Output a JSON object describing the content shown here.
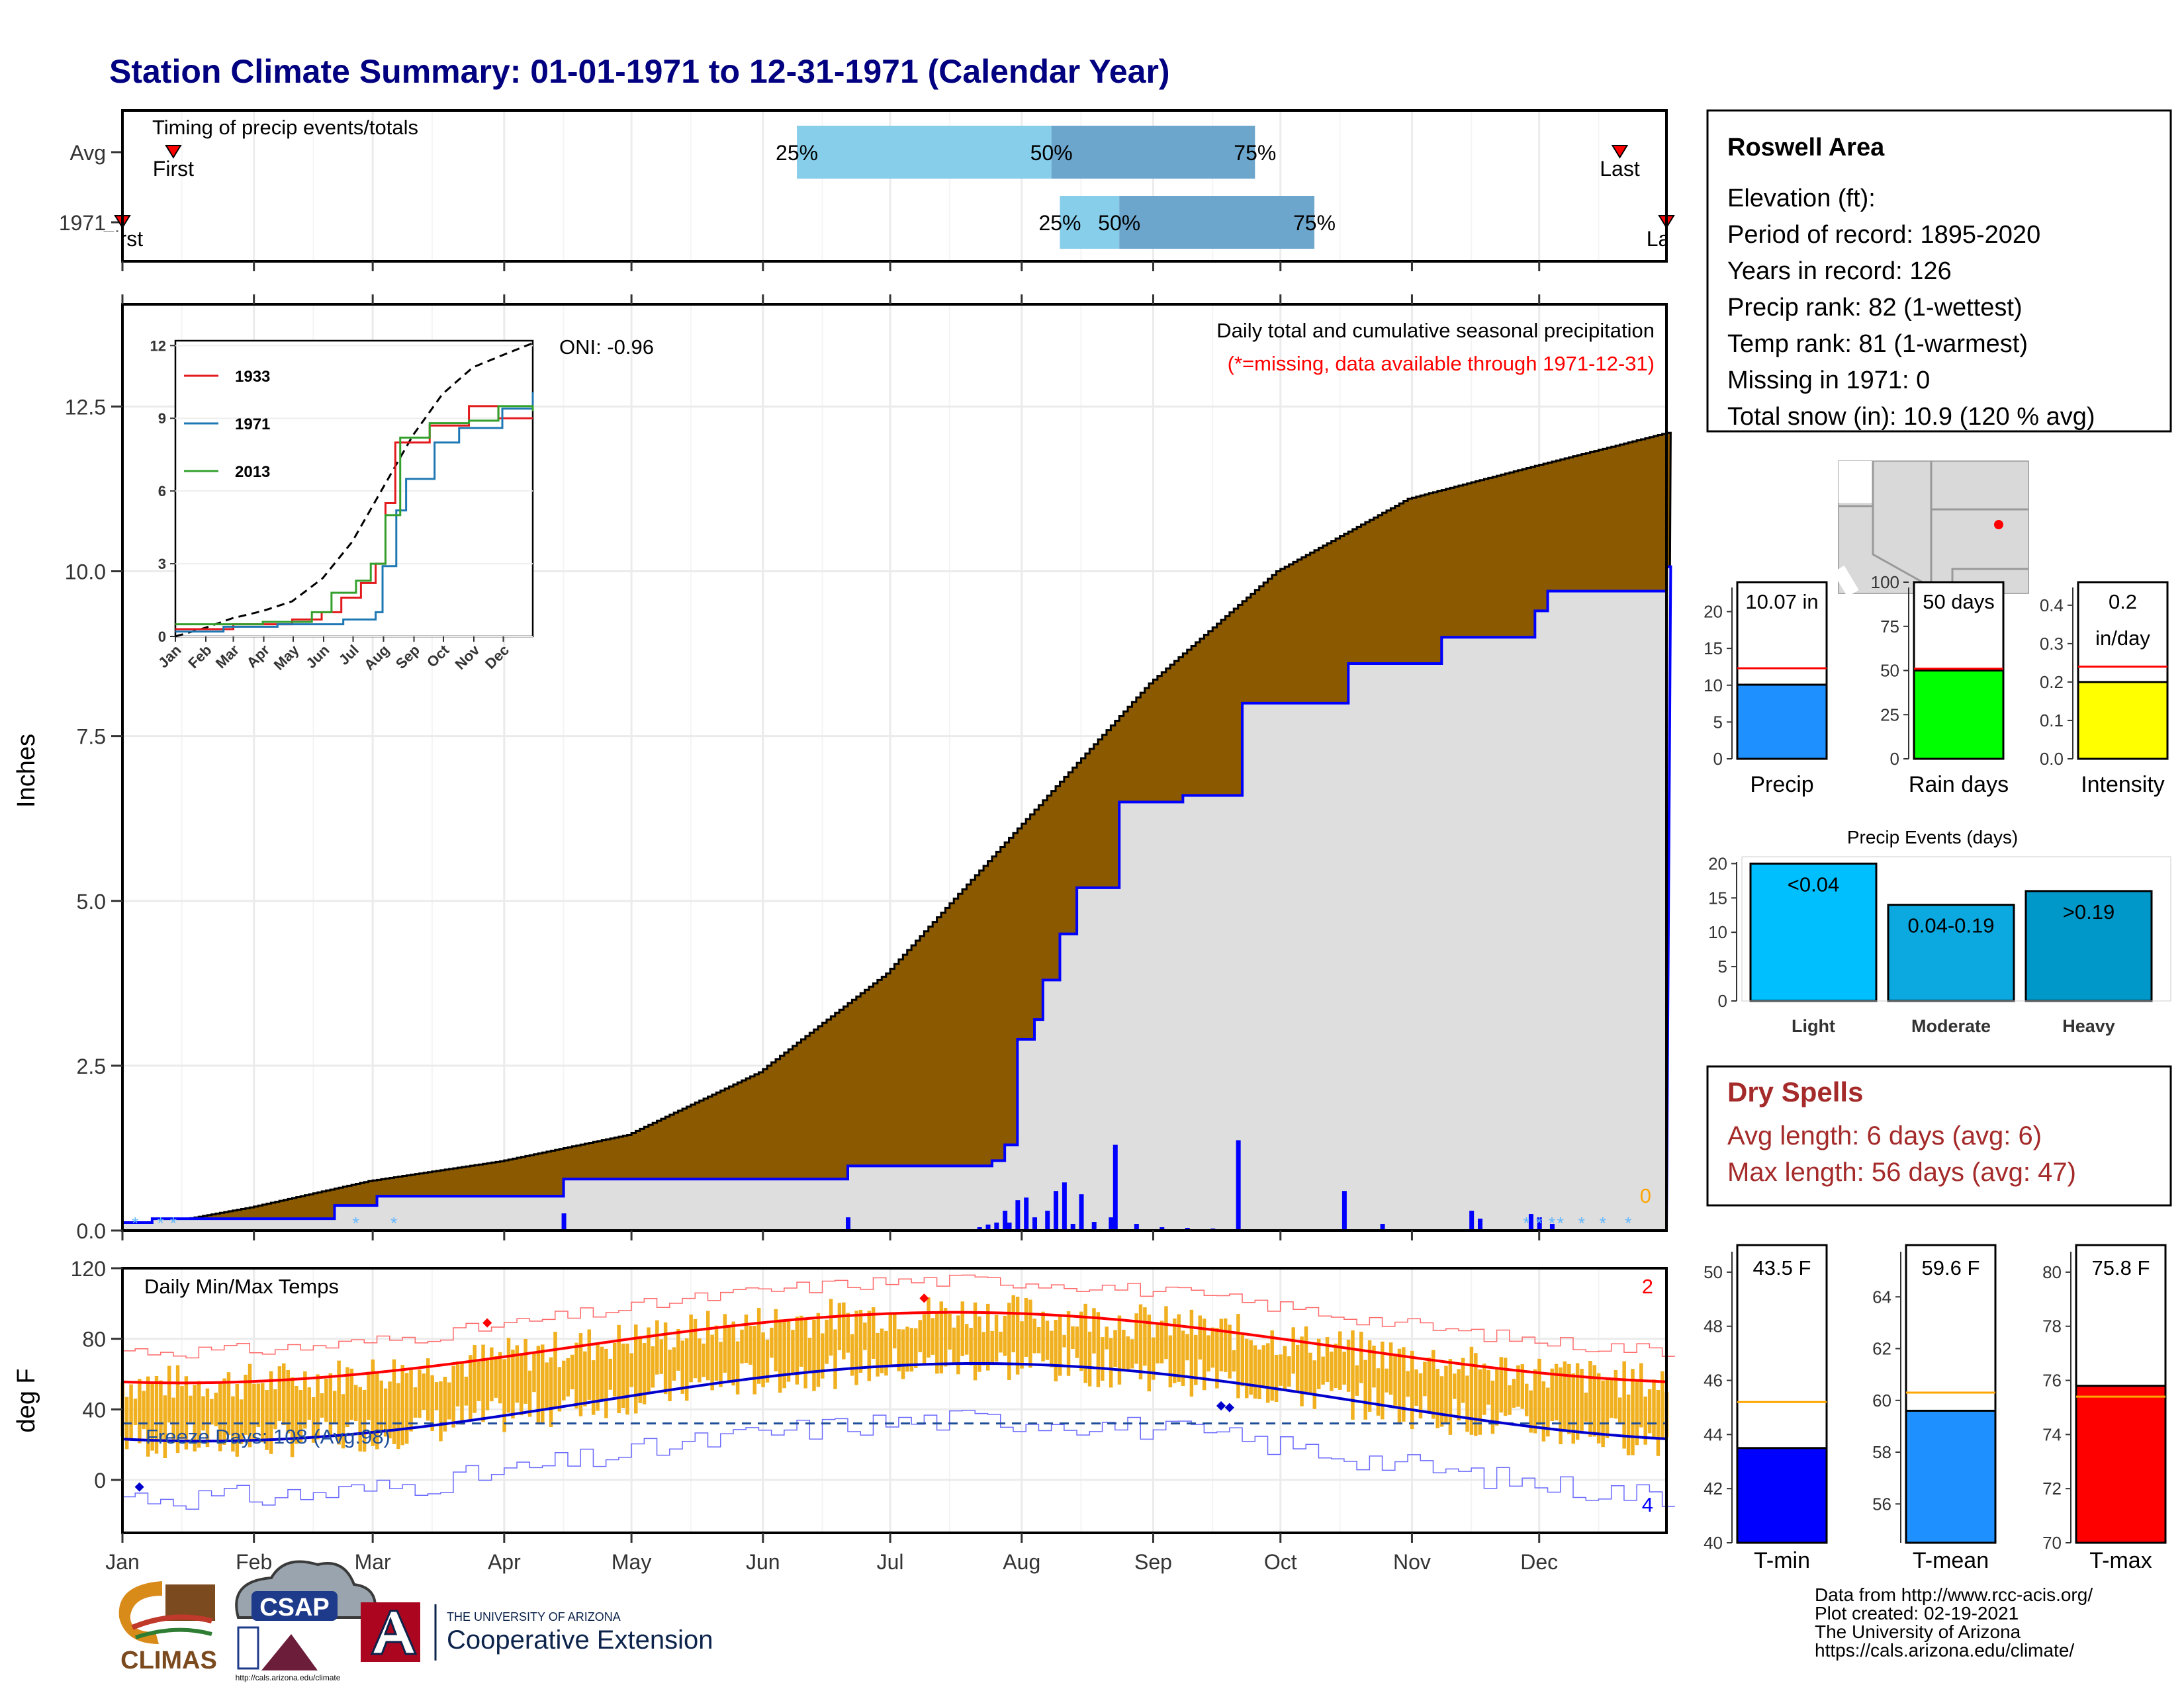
{
  "title": "Station Climate Summary: 01-01-1971 to 12-31-1971 (Calendar Year)",
  "months": [
    "Jan",
    "Feb",
    "Mar",
    "Apr",
    "May",
    "Jun",
    "Jul",
    "Aug",
    "Sep",
    "Oct",
    "Nov",
    "Dec"
  ],
  "timing": {
    "title": "Timing of precip events/totals",
    "rows": [
      {
        "label": "Avg",
        "first_day": 13,
        "last_day": 354,
        "first_label": "First",
        "last_label": "Last",
        "p25_day": 160,
        "p50_day": 220,
        "p75_day": 268
      },
      {
        "label": "1971",
        "first_day": 1,
        "last_day": 365,
        "first_label": "First",
        "last_label": "Last",
        "p25_day": 222,
        "p50_day": 236,
        "p75_day": 282
      }
    ],
    "pct_labels": [
      "25%",
      "50%",
      "75%"
    ]
  },
  "precip_panel": {
    "ylabel": "Inches",
    "ylim": [
      0,
      12.5
    ],
    "yticks": [
      "0.0",
      "2.5",
      "5.0",
      "7.5",
      "10.0",
      "12.5"
    ],
    "oni": "ONI: -0.96",
    "legend1": "Daily total and cumulative seasonal precipitation",
    "legend2": "(*=missing, data available through 1971-12-31)",
    "missing_count": "0",
    "avg_cumulative": [
      [
        1,
        0.0
      ],
      [
        31,
        0.35
      ],
      [
        59,
        0.75
      ],
      [
        90,
        1.05
      ],
      [
        120,
        1.45
      ],
      [
        151,
        2.4
      ],
      [
        181,
        3.9
      ],
      [
        212,
        6.1
      ],
      [
        243,
        8.3
      ],
      [
        273,
        10.0
      ],
      [
        304,
        11.1
      ],
      [
        334,
        11.6
      ],
      [
        365,
        12.1
      ]
    ],
    "cum_1971": [
      [
        1,
        0.12
      ],
      [
        8,
        0.18
      ],
      [
        50,
        0.18
      ],
      [
        51,
        0.38
      ],
      [
        60,
        0.38
      ],
      [
        61,
        0.52
      ],
      [
        104,
        0.52
      ],
      [
        105,
        0.78
      ],
      [
        171,
        0.78
      ],
      [
        172,
        0.98
      ],
      [
        203,
        0.98
      ],
      [
        206,
        1.06
      ],
      [
        209,
        1.3
      ],
      [
        212,
        2.9
      ],
      [
        216,
        3.2
      ],
      [
        218,
        3.8
      ],
      [
        222,
        4.5
      ],
      [
        226,
        5.2
      ],
      [
        234,
        5.2
      ],
      [
        236,
        6.5
      ],
      [
        250,
        6.5
      ],
      [
        251,
        6.6
      ],
      [
        263,
        6.6
      ],
      [
        265,
        8.0
      ],
      [
        289,
        8.0
      ],
      [
        290,
        8.6
      ],
      [
        309,
        8.6
      ],
      [
        312,
        9.0
      ],
      [
        332,
        9.0
      ],
      [
        334,
        9.4
      ],
      [
        337,
        9.7
      ],
      [
        365,
        10.07
      ]
    ],
    "daily_bars": [
      [
        105,
        0.26
      ],
      [
        172,
        0.2
      ],
      [
        203,
        0.05
      ],
      [
        205,
        0.09
      ],
      [
        207,
        0.12
      ],
      [
        209,
        0.3
      ],
      [
        210,
        0.12
      ],
      [
        212,
        0.46
      ],
      [
        214,
        0.5
      ],
      [
        216,
        0.2
      ],
      [
        219,
        0.3
      ],
      [
        221,
        0.6
      ],
      [
        223,
        0.73
      ],
      [
        225,
        0.1
      ],
      [
        227,
        0.55
      ],
      [
        230,
        0.13
      ],
      [
        234,
        0.2
      ],
      [
        235,
        1.3
      ],
      [
        240,
        0.1
      ],
      [
        246,
        0.05
      ],
      [
        252,
        0.04
      ],
      [
        258,
        0.03
      ],
      [
        264,
        1.37
      ],
      [
        289,
        0.6
      ],
      [
        298,
        0.1
      ],
      [
        319,
        0.3
      ],
      [
        321,
        0.18
      ],
      [
        333,
        0.25
      ],
      [
        335,
        0.2
      ],
      [
        338,
        0.1
      ]
    ]
  },
  "inset": {
    "yticks": [
      "0",
      "3",
      "6",
      "9",
      "12"
    ],
    "ylim": [
      0,
      12
    ],
    "months_short": [
      "Jan",
      "Feb",
      "Mar",
      "Apr",
      "May",
      "Jun",
      "Jul",
      "Aug",
      "Sep",
      "Oct",
      "Nov",
      "Dec"
    ],
    "series": [
      {
        "name": "1933",
        "color": "#e31a1c",
        "values": [
          [
            1,
            0.3
          ],
          [
            60,
            0.5
          ],
          [
            120,
            0.7
          ],
          [
            150,
            1.0
          ],
          [
            170,
            1.6
          ],
          [
            190,
            2.2
          ],
          [
            205,
            3.0
          ],
          [
            215,
            5.5
          ],
          [
            225,
            8.0
          ],
          [
            260,
            8.7
          ],
          [
            300,
            9.5
          ],
          [
            330,
            9.0
          ],
          [
            365,
            9.0
          ]
        ]
      },
      {
        "name": "1971",
        "color": "#1f78b4",
        "values": [
          [
            1,
            0.2
          ],
          [
            50,
            0.4
          ],
          [
            105,
            0.5
          ],
          [
            172,
            0.7
          ],
          [
            205,
            1.0
          ],
          [
            212,
            2.9
          ],
          [
            226,
            5.2
          ],
          [
            236,
            6.5
          ],
          [
            265,
            8.0
          ],
          [
            290,
            8.6
          ],
          [
            334,
            9.4
          ],
          [
            365,
            10.07
          ]
        ]
      },
      {
        "name": "2013",
        "color": "#33a02c",
        "values": [
          [
            1,
            0.5
          ],
          [
            90,
            0.6
          ],
          [
            140,
            1.0
          ],
          [
            160,
            1.8
          ],
          [
            185,
            2.3
          ],
          [
            200,
            3.0
          ],
          [
            215,
            5.0
          ],
          [
            230,
            8.2
          ],
          [
            260,
            8.8
          ],
          [
            300,
            8.9
          ],
          [
            330,
            9.5
          ],
          [
            365,
            9.3
          ]
        ]
      }
    ],
    "avg_values": [
      [
        1,
        0.0
      ],
      [
        31,
        0.35
      ],
      [
        59,
        0.75
      ],
      [
        90,
        1.05
      ],
      [
        120,
        1.45
      ],
      [
        151,
        2.4
      ],
      [
        181,
        3.9
      ],
      [
        212,
        6.1
      ],
      [
        243,
        8.3
      ],
      [
        273,
        10.0
      ],
      [
        304,
        11.1
      ],
      [
        334,
        11.6
      ],
      [
        365,
        12.1
      ]
    ]
  },
  "temp_panel": {
    "ylabel": "deg F",
    "title": "Daily Min/Max Temps",
    "ylim": [
      -30,
      120
    ],
    "yticks": [
      "0",
      "40",
      "80",
      "120"
    ],
    "freeze": "Freeze Days: 108 (Avg:98)",
    "freeze_line": 32,
    "count_top": "2",
    "count_bottom": "4"
  },
  "station": {
    "name": "Roswell Area",
    "lines": [
      "Elevation (ft):",
      "Period of record: 1895-2020",
      "Years in record: 126",
      "Precip rank: 82 (1-wettest)",
      "Temp rank: 81 (1-warmest)",
      "Missing in 1971: 0",
      "Total snow (in): 10.9 (120 % avg)"
    ]
  },
  "bar_panels": [
    {
      "label": "Precip",
      "value_text": "10.07 in",
      "value": 10.07,
      "avg": 12.3,
      "ylim": [
        0,
        24
      ],
      "yticks": [
        "0",
        "5",
        "10",
        "15",
        "20"
      ],
      "color": "#1e90ff"
    },
    {
      "label": "Rain days",
      "value_text": "50 days",
      "value": 50,
      "avg": 51,
      "ylim": [
        0,
        100
      ],
      "yticks": [
        "0",
        "25",
        "50",
        "75",
        "100"
      ],
      "color": "#00ff00"
    },
    {
      "label": "Intensity",
      "value_text_1": "0.2",
      "value_text_2": "in/day",
      "value": 0.2,
      "avg": 0.24,
      "ylim": [
        0,
        0.46
      ],
      "yticks": [
        "0.0",
        "0.1",
        "0.2",
        "0.3",
        "0.4"
      ],
      "color": "#ffff00"
    }
  ],
  "events": {
    "title": "Precip Events (days)",
    "yticks": [
      "0",
      "5",
      "10",
      "15",
      "20"
    ],
    "ylim": [
      0,
      21
    ],
    "categories": [
      "Light",
      "Moderate",
      "Heavy"
    ],
    "values": [
      20,
      14,
      16
    ],
    "value_labels": [
      "<0.04",
      "0.04-0.19",
      ">0.19"
    ],
    "colors": [
      "#00bfff",
      "#0ca8e0",
      "#0098c8"
    ]
  },
  "dry": {
    "title": "Dry Spells",
    "avg": "Avg length: 6 days (avg: 6)",
    "max": "Max length: 56 days (avg: 47)"
  },
  "temp_bars": [
    {
      "label": "T-min",
      "value_text": "43.5 F",
      "value": 43.5,
      "avg": 45.2,
      "ylim": [
        40,
        51
      ],
      "yticks": [
        "40",
        "42",
        "44",
        "46",
        "48",
        "50"
      ],
      "color": "#0000ff"
    },
    {
      "label": "T-mean",
      "value_text": "59.6 F",
      "value": 59.6,
      "avg": 60.3,
      "ylim": [
        54.5,
        66
      ],
      "yticks": [
        "56",
        "58",
        "60",
        "62",
        "64"
      ],
      "color": "#1e90ff"
    },
    {
      "label": "T-max",
      "value_text": "75.8 F",
      "value": 75.8,
      "avg": 75.4,
      "ylim": [
        70,
        81
      ],
      "yticks": [
        "70",
        "72",
        "74",
        "76",
        "78",
        "80"
      ],
      "color": "#ff0000"
    }
  ],
  "footer": {
    "lines": [
      "Data from http://www.rcc-acis.org/",
      "Plot created: 02-19-2021",
      "The University of Arizona",
      "https://cals.arizona.edu/climate/"
    ],
    "climas": "CLIMAS",
    "csap": "CSAP",
    "csap_url": "http://cals.arizona.edu/climate",
    "ua_top": "THE UNIVERSITY OF ARIZONA",
    "ua_bottom": "Cooperative Extension"
  }
}
